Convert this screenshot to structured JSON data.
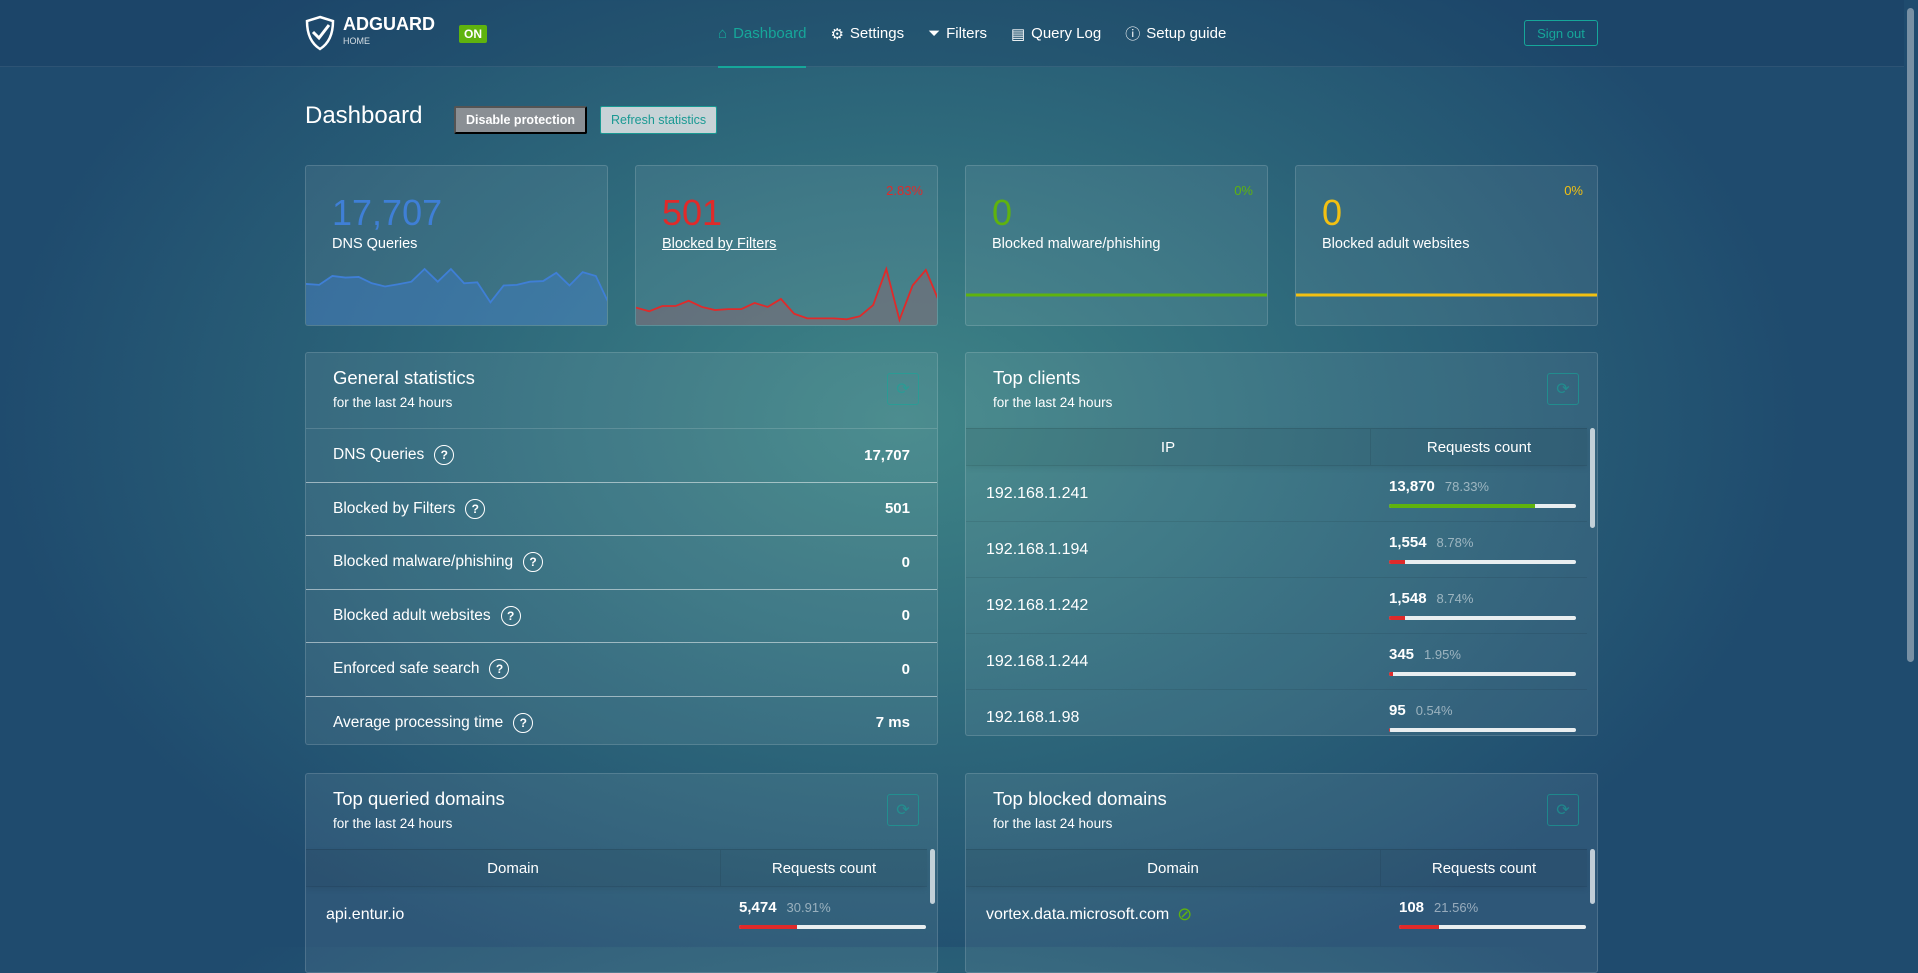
{
  "header": {
    "brand": "ADGUARD",
    "brand_sub": "HOME",
    "status_badge": "ON",
    "nav": [
      {
        "label": "Dashboard",
        "icon": "home-icon",
        "active": true
      },
      {
        "label": "Settings",
        "icon": "gear-icon"
      },
      {
        "label": "Filters",
        "icon": "filter-icon"
      },
      {
        "label": "Query Log",
        "icon": "document-icon"
      },
      {
        "label": "Setup guide",
        "icon": "help-icon"
      }
    ],
    "sign_out": "Sign out"
  },
  "page": {
    "title": "Dashboard",
    "disable_protection": "Disable protection",
    "refresh_statistics": "Refresh statistics"
  },
  "colors": {
    "accent": "#16a79a",
    "blue": "#3f7fd6",
    "red": "#e02a2a",
    "green": "#5fb30e",
    "yellow": "#f2c012"
  },
  "stats": [
    {
      "value": "17,707",
      "label": "DNS Queries",
      "percent": "",
      "color": "#3f7fd6",
      "sparkline": [
        123,
        120,
        148,
        143,
        145,
        125,
        115,
        122,
        130,
        170,
        130,
        170,
        125,
        128,
        65,
        118,
        120,
        130,
        132,
        158,
        118,
        160,
        148,
        60
      ]
    },
    {
      "value": "501",
      "label": "Blocked by Filters",
      "percent": "2.83%",
      "color": "#e02a2a",
      "sparkline": [
        50,
        38,
        55,
        55,
        72,
        52,
        42,
        45,
        45,
        65,
        52,
        78,
        30,
        15,
        15,
        15,
        12,
        22,
        58,
        175,
        10,
        122,
        172,
        70
      ]
    },
    {
      "value": "0",
      "label": "Blocked malware/phishing",
      "percent": "0%",
      "color": "#5fb30e",
      "sparkline": [
        0,
        0
      ]
    },
    {
      "value": "0",
      "label": "Blocked adult websites",
      "percent": "0%",
      "color": "#f2c012",
      "sparkline": [
        0,
        0
      ]
    }
  ],
  "general": {
    "title": "General statistics",
    "subtitle": "for the last 24 hours",
    "rows": [
      {
        "label": "DNS Queries",
        "value": "17,707"
      },
      {
        "label": "Blocked by Filters",
        "value": "501"
      },
      {
        "label": "Blocked malware/phishing",
        "value": "0"
      },
      {
        "label": "Blocked adult websites",
        "value": "0"
      },
      {
        "label": "Enforced safe search",
        "value": "0"
      },
      {
        "label": "Average processing time",
        "value": "7 ms"
      }
    ]
  },
  "clients": {
    "title": "Top clients",
    "subtitle": "for the last 24 hours",
    "col1": "IP",
    "col2": "Requests count",
    "rows": [
      {
        "ip": "192.168.1.241",
        "count": "13,870",
        "pct": "78.33%",
        "fill": 78.33,
        "color": "#5fb30e"
      },
      {
        "ip": "192.168.1.194",
        "count": "1,554",
        "pct": "8.78%",
        "fill": 8.78,
        "color": "#e02a2a"
      },
      {
        "ip": "192.168.1.242",
        "count": "1,548",
        "pct": "8.74%",
        "fill": 8.74,
        "color": "#e02a2a"
      },
      {
        "ip": "192.168.1.244",
        "count": "345",
        "pct": "1.95%",
        "fill": 1.95,
        "color": "#e02a2a"
      },
      {
        "ip": "192.168.1.98",
        "count": "95",
        "pct": "0.54%",
        "fill": 0.54,
        "color": "#e02a2a"
      }
    ]
  },
  "queried": {
    "title": "Top queried domains",
    "subtitle": "for the last 24 hours",
    "col1": "Domain",
    "col2": "Requests count",
    "rows": [
      {
        "domain": "api.entur.io",
        "count": "5,474",
        "pct": "30.91%",
        "fill": 30.91,
        "color": "#e02a2a"
      }
    ]
  },
  "blocked": {
    "title": "Top blocked domains",
    "subtitle": "for the last 24 hours",
    "col1": "Domain",
    "col2": "Requests count",
    "rows": [
      {
        "domain": "vortex.data.microsoft.com",
        "count": "108",
        "pct": "21.56%",
        "fill": 21.56,
        "color": "#e02a2a"
      }
    ]
  }
}
